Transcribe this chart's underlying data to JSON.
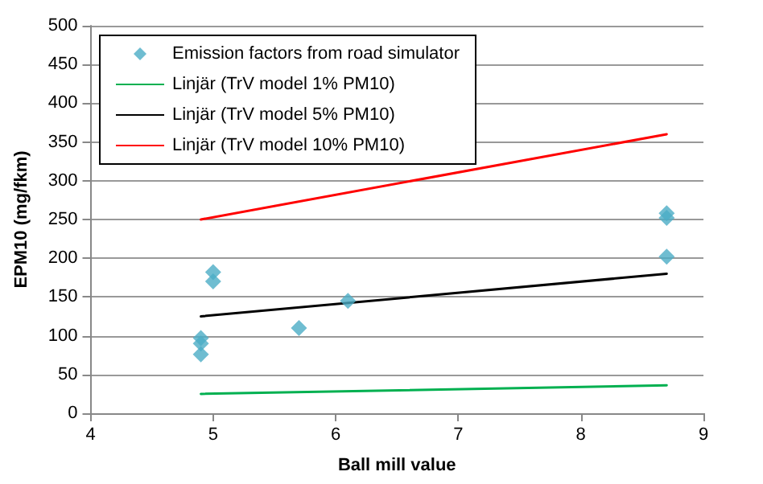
{
  "chart_data": {
    "type": "scatter",
    "xlabel": "Ball mill value",
    "ylabel": "EPM10 (mg/fkm)",
    "xlim": [
      4,
      9
    ],
    "xticks": [
      4,
      5,
      6,
      7,
      8,
      9
    ],
    "ylim": [
      0,
      500
    ],
    "yticks": [
      0,
      50,
      100,
      150,
      200,
      250,
      300,
      350,
      400,
      450,
      500
    ],
    "grid": "y",
    "legend": "top left",
    "series": [
      {
        "name": "Emission factors from road simulator",
        "marker": "diamond",
        "color": "#4bacc6",
        "x": [
          4.9,
          4.9,
          4.9,
          5.0,
          5.0,
          5.7,
          6.1,
          8.7,
          8.7,
          8.7
        ],
        "values": [
          97,
          90,
          76,
          182,
          170,
          110,
          145,
          258,
          252,
          202
        ]
      },
      {
        "name": "Linjär (TrV model 1% PM10)",
        "type": "line",
        "marker": "none",
        "color": "#00b050",
        "x": [
          4.9,
          8.7
        ],
        "values": [
          25,
          36
        ]
      },
      {
        "name": "Linjär (TrV model 5% PM10)",
        "type": "line",
        "marker": "none",
        "color": "#000000",
        "x": [
          4.9,
          8.7
        ],
        "values": [
          125,
          180
        ]
      },
      {
        "name": "Linjär (TrV model 10% PM10)",
        "type": "line",
        "marker": "none",
        "color": "#ff0000",
        "x": [
          4.9,
          8.7
        ],
        "values": [
          250,
          360
        ]
      }
    ]
  }
}
